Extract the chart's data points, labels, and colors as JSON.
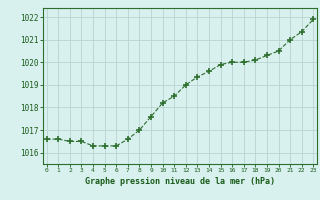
{
  "x": [
    0,
    1,
    2,
    3,
    4,
    5,
    6,
    7,
    8,
    9,
    10,
    11,
    12,
    13,
    14,
    15,
    16,
    17,
    18,
    19,
    20,
    21,
    22,
    23
  ],
  "y": [
    1016.6,
    1016.6,
    1016.5,
    1016.5,
    1016.3,
    1016.3,
    1016.3,
    1016.6,
    1017.0,
    1017.6,
    1018.2,
    1018.5,
    1019.0,
    1019.35,
    1019.6,
    1019.9,
    1020.0,
    1020.0,
    1020.1,
    1020.3,
    1020.5,
    1021.0,
    1021.35,
    1021.9
  ],
  "line_color": "#2d6e2d",
  "marker_color": "#2d6e2d",
  "bg_color": "#d8f0ee",
  "grid_color": "#b8d4d0",
  "xlabel": "Graphe pression niveau de la mer (hPa)",
  "xlabel_color": "#1a5c1a",
  "tick_color": "#1a5c1a",
  "spine_color": "#2d6e2d",
  "ylim": [
    1015.5,
    1022.4
  ],
  "yticks": [
    1016,
    1017,
    1018,
    1019,
    1020,
    1021,
    1022
  ],
  "xticks": [
    0,
    1,
    2,
    3,
    4,
    5,
    6,
    7,
    8,
    9,
    10,
    11,
    12,
    13,
    14,
    15,
    16,
    17,
    18,
    19,
    20,
    21,
    22,
    23
  ],
  "xlim": [
    -0.3,
    23.3
  ]
}
